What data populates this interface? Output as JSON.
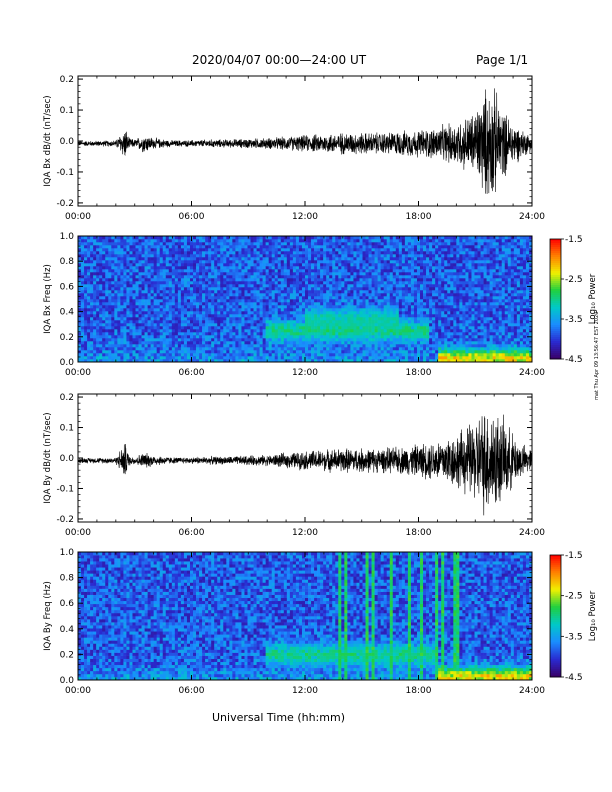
{
  "header": {
    "title": "2020/04/07  00:00—24:00 UT",
    "page": "Page 1/1"
  },
  "footer_note": "mat Thu Apr 09 13:56:47 EST 2020",
  "xaxis_title": "Universal Time (hh:mm)",
  "colors": {
    "trace": "#000000",
    "colormap": [
      "#3a0066",
      "#2a2ad0",
      "#1a8cff",
      "#00c8c8",
      "#20d040",
      "#f0f000",
      "#ff8000",
      "#ff0000"
    ]
  },
  "chart_data": [
    {
      "type": "line",
      "ylabel": "IQA Bx dB/dt (nT/sec)",
      "x_ticks": [
        "00:00",
        "06:00",
        "12:00",
        "18:00",
        "24:00"
      ],
      "y_ticks": [
        "0.2",
        "0.1",
        "0.0",
        "-0.1",
        "-0.2"
      ],
      "xlim": [
        0,
        24
      ],
      "ylim": [
        -0.21,
        0.21
      ],
      "series": [
        {
          "x": [
            0,
            1,
            2,
            2.5,
            2.7,
            3,
            3.5,
            4,
            5,
            6,
            7,
            8,
            9,
            10,
            11,
            12,
            13,
            14,
            15,
            16,
            17,
            18,
            19,
            20,
            21,
            21.5,
            22,
            22.5,
            23,
            23.5,
            24
          ],
          "amplitude": [
            0.01,
            0.01,
            0.012,
            0.06,
            0.02,
            0.015,
            0.035,
            0.02,
            0.012,
            0.012,
            0.015,
            0.015,
            0.018,
            0.02,
            0.025,
            0.03,
            0.035,
            0.04,
            0.04,
            0.04,
            0.045,
            0.05,
            0.06,
            0.08,
            0.12,
            0.2,
            0.2,
            0.12,
            0.08,
            0.05,
            0.03
          ]
        }
      ]
    },
    {
      "type": "heatmap",
      "ylabel": "IQA Bx Freq (Hz)",
      "x_ticks": [
        "00:00",
        "06:00",
        "12:00",
        "18:00",
        "24:00"
      ],
      "y_ticks": [
        "1.0",
        "0.8",
        "0.6",
        "0.4",
        "0.2",
        "0.0"
      ],
      "xlim": [
        0,
        24
      ],
      "ylim": [
        0,
        1.0
      ],
      "colorbar": {
        "label": "Log₁₀ Power",
        "ticks": [
          "-1.5",
          "-2.5",
          "-3.5",
          "-4.5"
        ],
        "range": [
          -4.5,
          -1.5
        ]
      },
      "features": [
        {
          "name": "band",
          "x_range": [
            10,
            18.5
          ],
          "f_center": 0.25,
          "level": -2.8
        },
        {
          "name": "band",
          "x_range": [
            12,
            17
          ],
          "f_center": 0.35,
          "level": -3.0
        },
        {
          "name": "lowfreq",
          "x_range": [
            19,
            24
          ],
          "f_center": 0.03,
          "level": -2.0
        }
      ]
    },
    {
      "type": "line",
      "ylabel": "IQA By dB/dt (nT/sec)",
      "x_ticks": [
        "00:00",
        "06:00",
        "12:00",
        "18:00",
        "24:00"
      ],
      "y_ticks": [
        "0.2",
        "0.1",
        "0.0",
        "-0.1",
        "-0.2"
      ],
      "xlim": [
        0,
        24
      ],
      "ylim": [
        -0.21,
        0.21
      ],
      "series": [
        {
          "x": [
            0,
            1,
            2,
            2.5,
            2.7,
            3,
            3.5,
            4,
            5,
            6,
            7,
            8,
            9,
            10,
            11,
            12,
            13,
            14,
            15,
            16,
            17,
            18,
            19,
            20,
            21,
            21.5,
            22,
            22.5,
            23,
            23.5,
            24
          ],
          "amplitude": [
            0.01,
            0.01,
            0.012,
            0.07,
            0.02,
            0.015,
            0.03,
            0.02,
            0.012,
            0.012,
            0.015,
            0.015,
            0.018,
            0.02,
            0.028,
            0.035,
            0.04,
            0.045,
            0.045,
            0.045,
            0.05,
            0.06,
            0.08,
            0.1,
            0.15,
            0.2,
            0.2,
            0.15,
            0.1,
            0.06,
            0.04
          ]
        }
      ]
    },
    {
      "type": "heatmap",
      "ylabel": "IQA By Freq (Hz)",
      "x_ticks": [
        "00:00",
        "06:00",
        "12:00",
        "18:00",
        "24:00"
      ],
      "y_ticks": [
        "1.0",
        "0.8",
        "0.6",
        "0.4",
        "0.2",
        "0.0"
      ],
      "xlim": [
        0,
        24
      ],
      "ylim": [
        0,
        1.0
      ],
      "colorbar": {
        "label": "Log₁₀ Power",
        "ticks": [
          "-1.5",
          "-2.5",
          "-3.5",
          "-4.5"
        ],
        "range": [
          -4.5,
          -1.5
        ]
      },
      "vertical_lines_hours": [
        13.9,
        14.2,
        15.3,
        15.6,
        16.5,
        17.5,
        18.2,
        19.0,
        19.3,
        20.0
      ],
      "features": [
        {
          "name": "band",
          "x_range": [
            10,
            19
          ],
          "f_center": 0.2,
          "level": -2.8
        },
        {
          "name": "lowfreq",
          "x_range": [
            19,
            24
          ],
          "f_center": 0.03,
          "level": -2.0
        }
      ]
    }
  ]
}
